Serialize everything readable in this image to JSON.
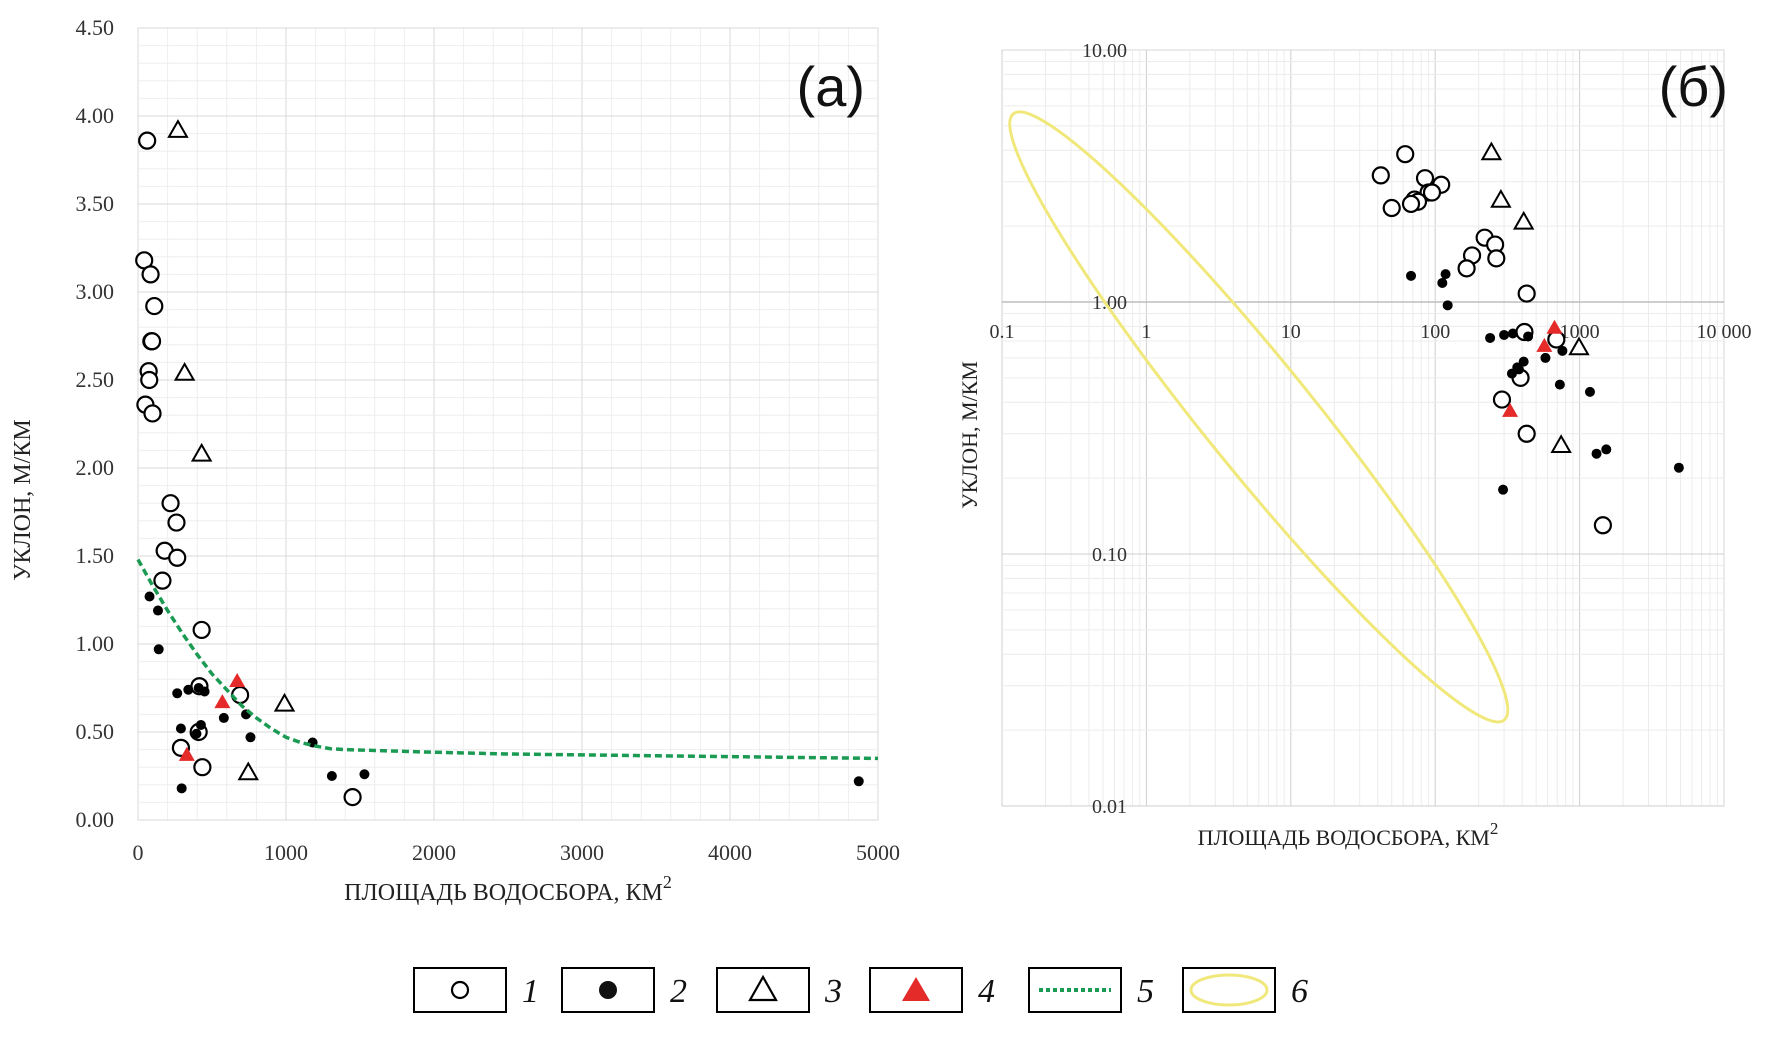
{
  "chart_data": [
    {
      "type": "scatter",
      "panel_label": "(а)",
      "xlabel": "ПЛОЩАДЬ ВОДОСБОРА, КМ",
      "xlabel_sup": "2",
      "ylabel": "УКЛОН, М/КМ",
      "xlim": [
        0,
        5000
      ],
      "ylim": [
        0,
        4.5
      ],
      "x_scale": "linear",
      "y_scale": "linear",
      "x_ticks": [
        0,
        1000,
        2000,
        3000,
        4000,
        5000
      ],
      "y_ticks": [
        0,
        0.5,
        1,
        1.5,
        2,
        2.5,
        3,
        3.5,
        4,
        4.5
      ],
      "x_tick_labels": [
        "0",
        "1000",
        "2000",
        "3000",
        "4000",
        "5000"
      ],
      "y_tick_labels": [
        "0.00",
        "0.50",
        "1.00",
        "1.50",
        "2.00",
        "2.50",
        "3.00",
        "3.50",
        "4.00",
        "4.50"
      ],
      "grid": true,
      "series": [
        {
          "key": "1",
          "marker": "open-circle",
          "x": [
            62,
            42,
            85,
            110,
            90,
            95,
            72,
            76,
            50,
            98,
            220,
            260,
            180,
            265,
            165,
            430,
            415,
            290,
            410,
            435,
            690,
            1450
          ],
          "y": [
            3.86,
            3.18,
            3.1,
            2.92,
            2.72,
            2.72,
            2.55,
            2.5,
            2.36,
            2.31,
            1.8,
            1.69,
            1.53,
            1.49,
            1.36,
            1.08,
            0.76,
            0.41,
            0.5,
            0.3,
            0.71,
            0.13
          ]
        },
        {
          "key": "2",
          "marker": "filled-dot",
          "x": [
            78,
            135,
            140,
            265,
            340,
            410,
            450,
            290,
            395,
            425,
            580,
            730,
            760,
            1180,
            1310,
            1530,
            4870,
            295
          ],
          "y": [
            1.27,
            1.19,
            0.97,
            0.72,
            0.74,
            0.75,
            0.73,
            0.52,
            0.49,
            0.54,
            0.58,
            0.6,
            0.47,
            0.44,
            0.25,
            0.26,
            0.22,
            0.18
          ]
        },
        {
          "key": "3",
          "marker": "open-triangle",
          "x": [
            270,
            315,
            430,
            990,
            745
          ],
          "y": [
            3.92,
            2.54,
            2.08,
            0.66,
            0.27
          ]
        },
        {
          "key": "4",
          "marker": "red-triangle",
          "color": "#e52a2a",
          "x": [
            670,
            570,
            330
          ],
          "y": [
            0.79,
            0.67,
            0.37
          ]
        },
        {
          "key": "5",
          "marker": "dotted-curve",
          "color": "#1a9a52",
          "x": [
            0,
            100,
            200,
            300,
            400,
            500,
            600,
            700,
            800,
            900,
            1000,
            1100,
            1200,
            1300,
            1400,
            1600,
            2000,
            2500,
            3000,
            3500,
            4000,
            4500,
            5000
          ],
          "y": [
            1.48,
            1.33,
            1.19,
            1.06,
            0.94,
            0.83,
            0.74,
            0.65,
            0.58,
            0.52,
            0.47,
            0.44,
            0.42,
            0.405,
            0.4,
            0.395,
            0.385,
            0.375,
            0.37,
            0.365,
            0.36,
            0.355,
            0.35
          ]
        }
      ]
    },
    {
      "type": "scatter",
      "panel_label": "(б)",
      "xlabel": "ПЛОЩАДЬ ВОДОСБОРА, КМ",
      "xlabel_sup": "2",
      "ylabel": "УКЛОН, М/КМ",
      "xlim": [
        0.1,
        10000
      ],
      "ylim": [
        0.01,
        10
      ],
      "x_scale": "log",
      "y_scale": "log",
      "x_ticks": [
        0.1,
        1,
        10,
        100,
        1000,
        10000
      ],
      "y_ticks": [
        0.01,
        0.1,
        1,
        10
      ],
      "x_tick_labels": [
        "0.1",
        "1",
        "10",
        "100",
        "1000",
        "10 000"
      ],
      "y_tick_labels": [
        "0.01",
        "0.10",
        "1.00",
        "10.00"
      ],
      "grid": true,
      "series": [
        {
          "key": "1",
          "marker": "open-circle",
          "x": [
            62,
            42,
            85,
            110,
            90,
            95,
            72,
            76,
            50,
            68,
            220,
            260,
            180,
            265,
            165,
            430,
            415,
            290,
            390,
            430,
            690,
            1450
          ],
          "y": [
            3.86,
            3.18,
            3.1,
            2.92,
            2.72,
            2.72,
            2.55,
            2.5,
            2.36,
            2.45,
            1.8,
            1.69,
            1.53,
            1.49,
            1.36,
            1.08,
            0.76,
            0.41,
            0.5,
            0.3,
            0.71,
            0.13
          ]
        },
        {
          "key": "2",
          "marker": "filled-dot",
          "x": [
            68,
            112,
            118,
            122,
            240,
            300,
            345,
            340,
            370,
            380,
            410,
            440,
            580,
            730,
            760,
            1180,
            1310,
            1530,
            4870,
            295
          ],
          "y": [
            1.27,
            1.19,
            1.29,
            0.97,
            0.72,
            0.74,
            0.75,
            0.52,
            0.55,
            0.54,
            0.58,
            0.73,
            0.6,
            0.47,
            0.64,
            0.44,
            0.25,
            0.26,
            0.22,
            0.18
          ]
        },
        {
          "key": "3",
          "marker": "open-triangle",
          "x": [
            245,
            285,
            410,
            990,
            745
          ],
          "y": [
            3.92,
            2.54,
            2.08,
            0.66,
            0.27
          ]
        },
        {
          "key": "4",
          "marker": "red-triangle",
          "color": "#e52a2a",
          "x": [
            670,
            570,
            330
          ],
          "y": [
            0.79,
            0.67,
            0.37
          ]
        },
        {
          "key": "6",
          "marker": "ellipse-outline",
          "color": "#f0e87a"
        }
      ]
    }
  ],
  "legend": [
    {
      "symbol": "open-circle",
      "label": "1"
    },
    {
      "symbol": "filled-dot",
      "label": "2"
    },
    {
      "symbol": "open-triangle",
      "label": "3"
    },
    {
      "symbol": "red-triangle",
      "label": "4",
      "color": "#e52a2a"
    },
    {
      "symbol": "green-dotted-line",
      "label": "5",
      "color": "#1a9a52"
    },
    {
      "symbol": "yellow-ellipse",
      "label": "6",
      "color": "#f0e87a"
    }
  ]
}
